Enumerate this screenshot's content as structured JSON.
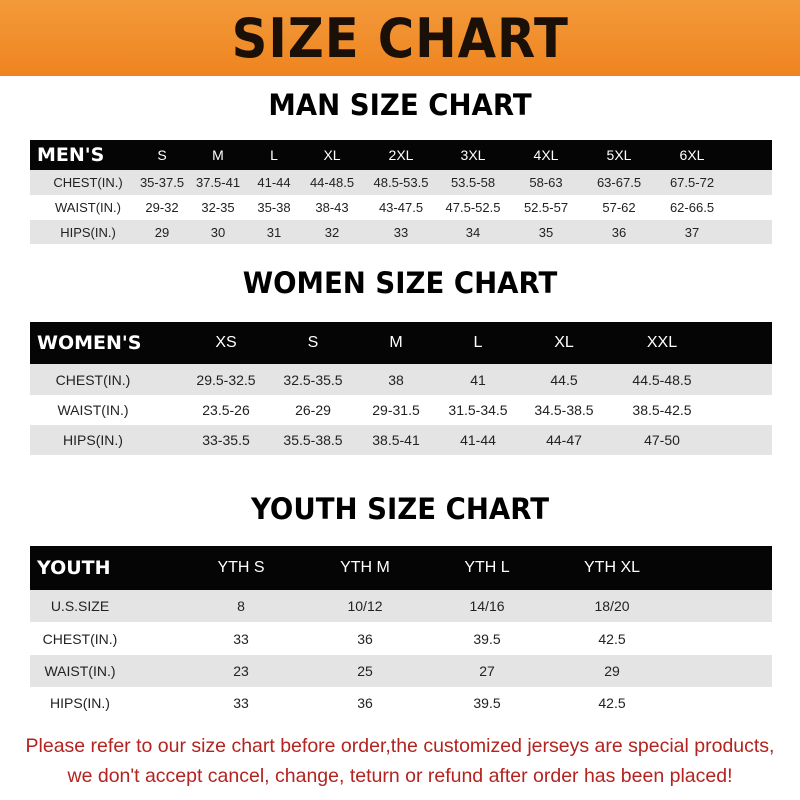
{
  "banner": {
    "title": "SIZE CHART"
  },
  "men": {
    "title": "MAN SIZE CHART",
    "header": [
      "MEN'S",
      "S",
      "M",
      "L",
      "XL",
      "2XL",
      "3XL",
      "4XL",
      "5XL",
      "6XL"
    ],
    "rows": [
      [
        "CHEST(IN.)",
        "35-37.5",
        "37.5-41",
        "41-44",
        "44-48.5",
        "48.5-53.5",
        "53.5-58",
        "58-63",
        "63-67.5",
        "67.5-72"
      ],
      [
        "WAIST(IN.)",
        "29-32",
        "32-35",
        "35-38",
        "38-43",
        "43-47.5",
        "47.5-52.5",
        "52.5-57",
        "57-62",
        "62-66.5"
      ],
      [
        "HIPS(IN.)",
        "29",
        "30",
        "31",
        "32",
        "33",
        "34",
        "35",
        "36",
        "37"
      ]
    ]
  },
  "women": {
    "title": "WOMEN SIZE CHART",
    "header": [
      "WOMEN'S",
      "XS",
      "S",
      "M",
      "L",
      "XL",
      "XXL"
    ],
    "rows": [
      [
        "CHEST(IN.)",
        "29.5-32.5",
        "32.5-35.5",
        "38",
        "41",
        "44.5",
        "44.5-48.5"
      ],
      [
        "WAIST(IN.)",
        "23.5-26",
        "26-29",
        "29-31.5",
        "31.5-34.5",
        "34.5-38.5",
        "38.5-42.5"
      ],
      [
        "HIPS(IN.)",
        "33-35.5",
        "35.5-38.5",
        "38.5-41",
        "41-44",
        "44-47",
        "47-50"
      ]
    ]
  },
  "youth": {
    "title": "YOUTH SIZE CHART",
    "header": [
      "YOUTH",
      "YTH S",
      "YTH M",
      "YTH L",
      "YTH XL"
    ],
    "rows": [
      [
        "U.S.SIZE",
        "8",
        "10/12",
        "14/16",
        "18/20"
      ],
      [
        "CHEST(IN.)",
        "33",
        "36",
        "39.5",
        "42.5"
      ],
      [
        "WAIST(IN.)",
        "23",
        "25",
        "27",
        "29"
      ],
      [
        "HIPS(IN.)",
        "33",
        "36",
        "39.5",
        "42.5"
      ]
    ]
  },
  "note": {
    "line1": "Please refer to our size chart before order,the customized jerseys are special products,",
    "line2": "we don't accept cancel, change, teturn or refund after order has been placed!"
  },
  "colors": {
    "banner": "#f08a24",
    "header_row": "#050505",
    "stripe": "#e4e4e4",
    "note": "#b4231f"
  }
}
